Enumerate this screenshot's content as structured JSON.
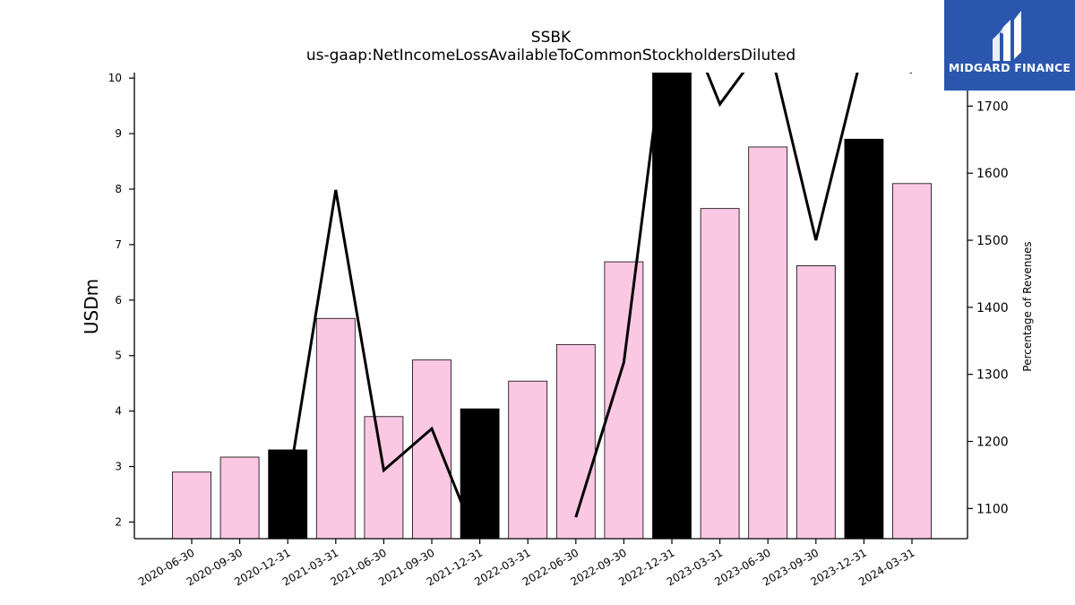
{
  "chart_data": {
    "type": "bar",
    "title": "SSBK",
    "subtitle": "us-gaap:NetIncomeLossAvailableToCommonStockholdersDiluted",
    "ylabel": "USDm",
    "y2label": "Percentage of Revenues",
    "categories": [
      "2020-06-30",
      "2020-09-30",
      "2020-12-31",
      "2021-03-31",
      "2021-06-30",
      "2021-09-30",
      "2021-12-31",
      "2022-03-31",
      "2022-06-30",
      "2022-09-30",
      "2022-12-31",
      "2023-03-31",
      "2023-06-30",
      "2023-09-30",
      "2023-12-31",
      "2024-03-31"
    ],
    "ylim": [
      1.7,
      10.1
    ],
    "yticks": [
      2,
      3,
      4,
      5,
      6,
      7,
      8,
      9,
      10
    ],
    "y2lim": [
      1055,
      1750
    ],
    "y2ticks": [
      1100,
      1200,
      1300,
      1400,
      1500,
      1600,
      1700
    ],
    "series": [
      {
        "kind": "bar",
        "values": [
          2.9,
          3.17,
          3.3,
          5.67,
          3.9,
          4.92,
          4.04,
          4.54,
          5.2,
          6.69,
          10.5,
          7.65,
          8.76,
          6.62,
          8.9,
          8.1
        ],
        "colors": [
          "#fbc8e3",
          "#fbc8e3",
          "#000000",
          "#fbc8e3",
          "#fbc8e3",
          "#fbc8e3",
          "#000000",
          "#fbc8e3",
          "#fbc8e3",
          "#fbc8e3",
          "#000000",
          "#fbc8e3",
          "#fbc8e3",
          "#fbc8e3",
          "#000000",
          "#fbc8e3"
        ]
      },
      {
        "kind": "line",
        "axis": "right",
        "color": "#000000",
        "values": [
          null,
          null,
          1130,
          1575,
          1157,
          1219,
          1040,
          null,
          1087,
          1318,
          1880,
          1703,
          1800,
          1500,
          1790,
          1750
        ]
      }
    ],
    "grid": false,
    "legend": "none"
  },
  "logo": {
    "name": "MIDGARD FINANCE",
    "bg": "#2a57ad"
  }
}
